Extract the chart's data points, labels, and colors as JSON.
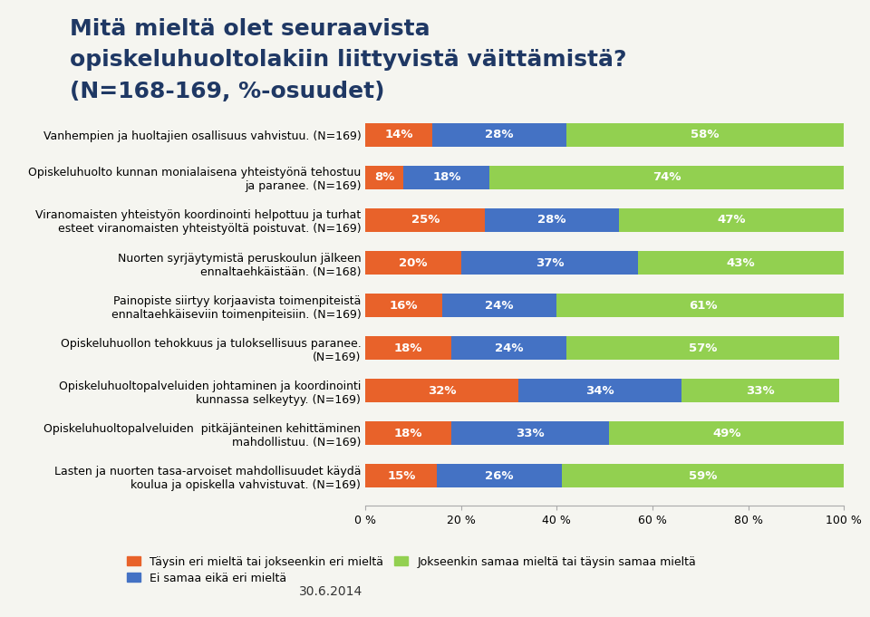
{
  "title_line1": "Mitä mieltä olet seuraavista",
  "title_line2": "opiskeluhuoltolakiin liittyvistä väittämistä?",
  "title_line3": "(N=168-169, %-osuudet)",
  "categories": [
    "Lasten ja nuorten tasa-arvoiset mahdollisuudet käydä\nkoulua ja opiskella vahvistuvat. (N=169)",
    "Opiskeluhuoltopalveluiden  pitkäjänteinen kehittäminen\nmahdollistuu. (N=169)",
    "Opiskeluhuoltopalveluiden johtaminen ja koordinointi\nkunnassa selkeytyy. (N=169)",
    "Opiskeluhuollon tehokkuus ja tuloksellisuus paranee.\n(N=169)",
    "Painopiste siirtyy korjaavista toimenpiteistä\nennaltaehkäiseviin toimenpiteisiin. (N=169)",
    "Nuorten syrjäytymistä peruskoulun jälkeen\nennaltaehkäistään. (N=168)",
    "Viranomaisten yhteistyön koordinointi helpottuu ja turhat\nesteet viranomaisten yhteistyöltä poistuvat. (N=169)",
    "Opiskeluhuolto kunnan monialaisena yhteistyönä tehostuu\nja paranee. (N=169)",
    "Vanhempien ja huoltajien osallisuus vahvistuu. (N=169)"
  ],
  "orange_vals": [
    14,
    8,
    25,
    20,
    16,
    18,
    32,
    18,
    15
  ],
  "blue_vals": [
    28,
    18,
    28,
    37,
    24,
    24,
    34,
    33,
    26
  ],
  "green_vals": [
    58,
    74,
    47,
    43,
    61,
    57,
    33,
    49,
    59
  ],
  "orange_color": "#E8622A",
  "blue_color": "#4472C4",
  "green_color": "#92D050",
  "bg_color": "#F5F5F0",
  "title_color": "#1F3864",
  "legend_labels": [
    "Täysin eri mieltä tai jokseenkin eri mieltä",
    "Ei samaa eikä eri mieltä",
    "Jokseenkin samaa mieltä tai täysin samaa mieltä"
  ],
  "xlabel_ticks": [
    0,
    20,
    40,
    60,
    80,
    100
  ],
  "bar_height": 0.55,
  "label_fontsize": 9.5,
  "tick_fontsize": 9,
  "title_fontsize1": 18,
  "title_fontsize2": 14
}
